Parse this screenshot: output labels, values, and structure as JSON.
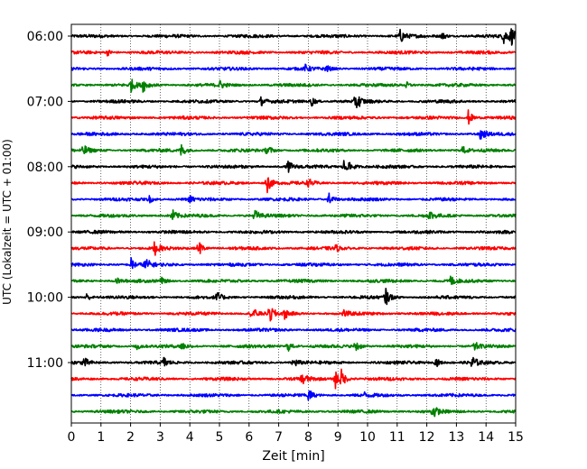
{
  "chart_data": {
    "type": "line",
    "title": "",
    "xlabel": "Zeit  [min]",
    "ylabel": "UTC (Lokalzeit = UTC + 01:00)",
    "xlim": [
      0,
      15
    ],
    "x_ticks": [
      0,
      1,
      2,
      3,
      4,
      5,
      6,
      7,
      8,
      9,
      10,
      11,
      12,
      13,
      14,
      15
    ],
    "y_tick_labels": [
      "06:00",
      "07:00",
      "08:00",
      "09:00",
      "10:00",
      "11:00"
    ],
    "y_tick_trace_index": [
      0,
      4,
      8,
      12,
      16,
      20
    ],
    "grid": "vertical dotted at each minute",
    "trace_minutes": 15,
    "trace_colors": [
      "#000000",
      "#ff0000",
      "#0000ff",
      "#008000"
    ],
    "traces": [
      {
        "start": "06:00",
        "events": [
          [
            11.1,
            0.9
          ],
          [
            12.5,
            0.5
          ],
          [
            14.6,
            1.0
          ],
          [
            14.85,
            1.0
          ]
        ]
      },
      {
        "start": "06:15",
        "events": [
          [
            1.2,
            0.4
          ]
        ]
      },
      {
        "start": "06:30",
        "events": [
          [
            7.9,
            0.4
          ],
          [
            8.6,
            0.4
          ]
        ]
      },
      {
        "start": "06:45",
        "events": [
          [
            2.0,
            0.8
          ],
          [
            2.4,
            0.9
          ],
          [
            5.0,
            0.5
          ],
          [
            11.3,
            0.4
          ]
        ]
      },
      {
        "start": "07:00",
        "events": [
          [
            6.4,
            0.5
          ],
          [
            8.1,
            0.6
          ],
          [
            9.6,
            1.3
          ]
        ]
      },
      {
        "start": "07:15",
        "events": [
          [
            13.4,
            0.9
          ]
        ]
      },
      {
        "start": "07:30",
        "events": [
          [
            13.8,
            0.9
          ]
        ]
      },
      {
        "start": "07:45",
        "events": [
          [
            0.4,
            0.7
          ],
          [
            3.7,
            0.8
          ],
          [
            6.6,
            0.8
          ],
          [
            13.2,
            0.5
          ]
        ]
      },
      {
        "start": "08:00",
        "events": [
          [
            7.3,
            0.9
          ],
          [
            9.2,
            0.8
          ],
          [
            9.4,
            0.6
          ]
        ]
      },
      {
        "start": "08:15",
        "events": [
          [
            6.6,
            1.3
          ],
          [
            8.0,
            0.5
          ]
        ]
      },
      {
        "start": "08:30",
        "events": [
          [
            2.6,
            0.5
          ],
          [
            4.0,
            0.4
          ],
          [
            8.7,
            0.8
          ]
        ]
      },
      {
        "start": "08:45",
        "events": [
          [
            3.4,
            0.8
          ],
          [
            6.2,
            0.7
          ],
          [
            12.1,
            0.6
          ]
        ]
      },
      {
        "start": "09:00",
        "events": []
      },
      {
        "start": "09:15",
        "events": [
          [
            2.8,
            0.9
          ],
          [
            4.3,
            1.0
          ],
          [
            8.9,
            0.4
          ]
        ]
      },
      {
        "start": "09:30",
        "events": [
          [
            2.0,
            0.9
          ],
          [
            2.5,
            0.9
          ]
        ]
      },
      {
        "start": "09:45",
        "events": [
          [
            1.5,
            0.4
          ],
          [
            3.0,
            0.5
          ],
          [
            12.8,
            0.6
          ]
        ]
      },
      {
        "start": "10:00",
        "events": [
          [
            0.5,
            0.5
          ],
          [
            4.9,
            0.7
          ],
          [
            10.6,
            1.1
          ]
        ]
      },
      {
        "start": "10:15",
        "events": [
          [
            6.1,
            0.9
          ],
          [
            6.7,
            1.1
          ],
          [
            7.2,
            0.6
          ],
          [
            9.2,
            0.4
          ]
        ]
      },
      {
        "start": "10:30",
        "events": []
      },
      {
        "start": "10:45",
        "events": [
          [
            2.2,
            0.6
          ],
          [
            3.7,
            0.6
          ],
          [
            7.3,
            0.7
          ],
          [
            9.6,
            0.8
          ],
          [
            13.6,
            0.6
          ]
        ]
      },
      {
        "start": "11:00",
        "events": [
          [
            0.4,
            0.7
          ],
          [
            3.1,
            0.7
          ],
          [
            7.5,
            0.7
          ],
          [
            12.3,
            0.6
          ],
          [
            13.5,
            1.1
          ]
        ]
      },
      {
        "start": "11:15",
        "events": [
          [
            7.8,
            0.9
          ],
          [
            8.9,
            1.3
          ],
          [
            9.1,
            1.1
          ]
        ]
      },
      {
        "start": "11:30",
        "events": [
          [
            8.0,
            0.8
          ],
          [
            9.9,
            0.3
          ]
        ]
      },
      {
        "start": "11:45",
        "events": [
          [
            12.2,
            0.9
          ]
        ]
      }
    ]
  }
}
